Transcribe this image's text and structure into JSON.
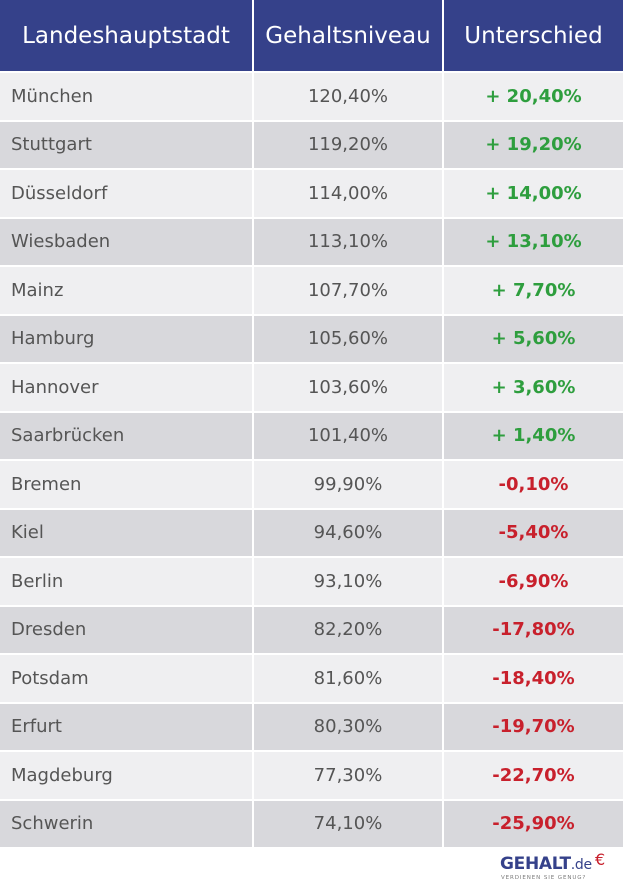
{
  "table": {
    "headers": [
      "Landeshauptstadt",
      "Gehaltsniveau",
      "Unterschied"
    ],
    "rows": [
      {
        "city": "München",
        "level": "120,40%",
        "diff": "+ 20,40%",
        "sign": "pos"
      },
      {
        "city": "Stuttgart",
        "level": "119,20%",
        "diff": "+ 19,20%",
        "sign": "pos"
      },
      {
        "city": "Düsseldorf",
        "level": "114,00%",
        "diff": "+ 14,00%",
        "sign": "pos"
      },
      {
        "city": "Wiesbaden",
        "level": "113,10%",
        "diff": "+ 13,10%",
        "sign": "pos"
      },
      {
        "city": "Mainz",
        "level": "107,70%",
        "diff": "+ 7,70%",
        "sign": "pos"
      },
      {
        "city": "Hamburg",
        "level": "105,60%",
        "diff": "+ 5,60%",
        "sign": "pos"
      },
      {
        "city": "Hannover",
        "level": "103,60%",
        "diff": "+ 3,60%",
        "sign": "pos"
      },
      {
        "city": "Saarbrücken",
        "level": "101,40%",
        "diff": "+ 1,40%",
        "sign": "pos"
      },
      {
        "city": "Bremen",
        "level": "99,90%",
        "diff": "-0,10%",
        "sign": "neg"
      },
      {
        "city": "Kiel",
        "level": "94,60%",
        "diff": "-5,40%",
        "sign": "neg"
      },
      {
        "city": "Berlin",
        "level": "93,10%",
        "diff": "-6,90%",
        "sign": "neg"
      },
      {
        "city": "Dresden",
        "level": "82,20%",
        "diff": "-17,80%",
        "sign": "neg"
      },
      {
        "city": "Potsdam",
        "level": "81,60%",
        "diff": "-18,40%",
        "sign": "neg"
      },
      {
        "city": "Erfurt",
        "level": "80,30%",
        "diff": "-19,70%",
        "sign": "neg"
      },
      {
        "city": "Magdeburg",
        "level": "77,30%",
        "diff": "-22,70%",
        "sign": "neg"
      },
      {
        "city": "Schwerin",
        "level": "74,10%",
        "diff": "-25,90%",
        "sign": "neg"
      }
    ]
  },
  "logo": {
    "name": "GEHALT",
    "tld": ".de",
    "euro": "€",
    "tagline": "VERDIENEN SIE GENUG?"
  },
  "colors": {
    "header_bg": "#35418a",
    "positive": "#2e9e3e",
    "negative": "#c8202c",
    "row_light": "#efeff1",
    "row_dark": "#d8d8dc"
  }
}
